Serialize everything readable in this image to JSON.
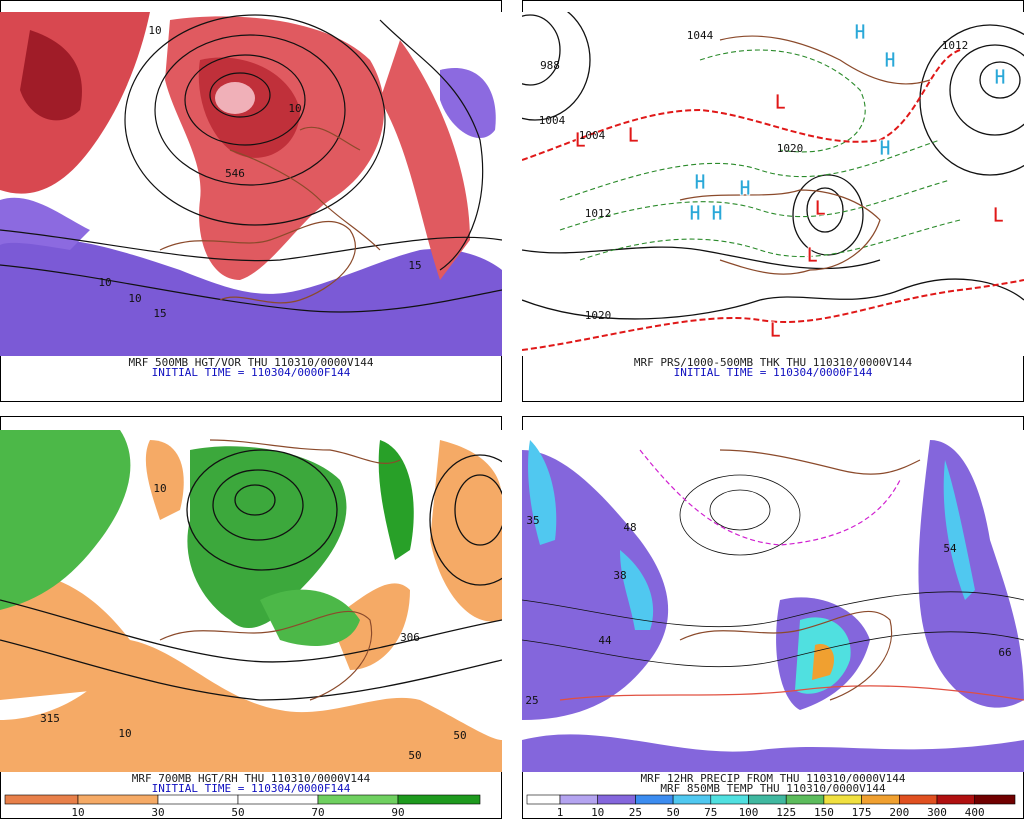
{
  "panels": [
    {
      "caption": [
        {
          "text": "MRF 500MB HGT/VOR THU 110310/0000V144",
          "color": "#202020"
        },
        {
          "text": "INITIAL TIME = 110304/0000F144",
          "color": "#1010c0"
        }
      ],
      "labels": [
        "10",
        "546",
        "10",
        "15",
        "10",
        "15",
        "10"
      ]
    },
    {
      "caption": [
        {
          "text": "MRF PRS/1000-500MB THK THU 110310/0000V144",
          "color": "#202020"
        },
        {
          "text": "INITIAL TIME = 110304/0000F144",
          "color": "#1010c0"
        }
      ],
      "labels": [
        "988",
        "1004",
        "1004",
        "1044",
        "1012",
        "1012",
        "1020",
        "1020"
      ],
      "highs": [
        "H",
        "H",
        "H",
        "H",
        "H",
        "H",
        "H",
        "H"
      ],
      "lows": [
        "L",
        "L",
        "L",
        "L",
        "L",
        "L",
        "L"
      ]
    },
    {
      "caption": [
        {
          "text": "MRF 700MB HGT/RH THU 110310/0000V144",
          "color": "#202020"
        },
        {
          "text": "INITIAL TIME = 110304/0000F144",
          "color": "#1010c0"
        }
      ],
      "labels": [
        "315",
        "10",
        "50",
        "50",
        "306",
        "10"
      ]
    },
    {
      "caption": [
        {
          "text": "MRF 12HR PRECIP FROM THU 110310/0000V144",
          "color": "#202020"
        },
        {
          "text": "MRF 850MB TEMP THU 110310/0000V144",
          "color": "#202020"
        }
      ],
      "labels": [
        "35",
        "48",
        "38",
        "44",
        "54",
        "66",
        "25"
      ]
    }
  ],
  "colorbars": [
    {
      "labels": [
        "10",
        "30",
        "50",
        "70",
        "90"
      ],
      "colors": [
        "#e8804a",
        "#f5aa66",
        "#ffffff",
        "#ffffff",
        "#6fd060",
        "#1e9a1e"
      ]
    },
    {
      "labels": [
        "1",
        "10",
        "25",
        "50",
        "75",
        "100",
        "125",
        "150",
        "175",
        "200",
        "300",
        "400"
      ],
      "colors": [
        "#ffffff",
        "#b4a4f0",
        "#8466dc",
        "#3c8cf0",
        "#50c8f0",
        "#50e0e0",
        "#40b8a0",
        "#5cbc5c",
        "#f0e040",
        "#f0a030",
        "#e05020",
        "#b01010",
        "#700000"
      ]
    }
  ]
}
